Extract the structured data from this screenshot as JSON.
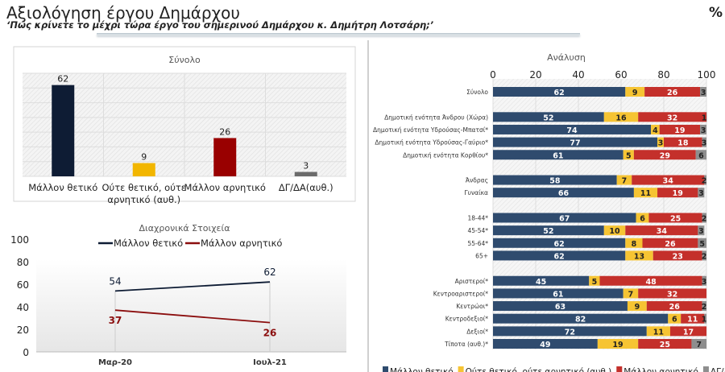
{
  "header": {
    "title": "Αξιολόγηση έργου Δημάρχου",
    "subtitle": "‘Πώς κρίνετε το μέχρι τώρα έργο του σημερινού Δημάρχου κ. Δημήτρη Λοτσάρη;’",
    "unit": "%"
  },
  "colors": {
    "positive": "#0e1c34",
    "neutral": "#f2b600",
    "negative": "#990000",
    "dk": "#6b6b6b",
    "a_positive": "#2f4b6e",
    "a_neutral": "#f6c433",
    "a_negative": "#c4302b",
    "a_dk": "#8e8e8e"
  },
  "chart_data": [
    {
      "type": "bar",
      "title": "Σύνολο",
      "categories": [
        "Μάλλον θετικό",
        "Ούτε θετικό, ούτε αρνητικό (αυθ.)",
        "Μάλλον αρνητικό",
        "ΔΓ/ΔΑ(αυθ.)"
      ],
      "category_lines": [
        [
          "Μάλλον θετικό"
        ],
        [
          "Ούτε θετικό, ούτε",
          "αρνητικό (αυθ.)"
        ],
        [
          "Μάλλον αρνητικό"
        ],
        [
          "ΔΓ/ΔΑ(αυθ.)"
        ]
      ],
      "values": [
        62,
        9,
        26,
        3
      ],
      "ylim": [
        0,
        70
      ]
    },
    {
      "type": "line",
      "title": "Διαχρονικά Στοιχεία",
      "x": [
        "Μαρ-20",
        "Ιουλ-21"
      ],
      "series": [
        {
          "name": "Μάλλον θετικό",
          "values": [
            54,
            62
          ]
        },
        {
          "name": "Μάλλον αρνητικό",
          "values": [
            37,
            26
          ]
        }
      ],
      "ylim": [
        0,
        100
      ],
      "yticks": [
        "0",
        "20",
        "40",
        "60",
        "80",
        "100"
      ],
      "legend": "top"
    },
    {
      "type": "bar",
      "orientation": "horizontal-stacked",
      "title": "Ανάλυση",
      "xlim": [
        0,
        100
      ],
      "xticks": [
        "0",
        "20",
        "40",
        "60",
        "80",
        "100"
      ],
      "series_names": [
        "Μάλλον θετικό",
        "Ούτε θετικό, ούτε αρνητικό (αυθ.)",
        "Μάλλον αρνητικό",
        "ΔΓ/ΔΑ(αυθ.)"
      ],
      "groups": [
        [
          {
            "label": "Σύνολο",
            "values": [
              62,
              9,
              26,
              3
            ]
          }
        ],
        [
          {
            "label": "Δημοτική ενότητα Άνδρου (Χώρα)",
            "values": [
              52,
              16,
              32,
              1
            ]
          },
          {
            "label": "Δημοτική ενότητα Υδρούσας-Μπατσί*",
            "values": [
              74,
              4,
              19,
              3
            ]
          },
          {
            "label": "Δημοτική ενότητα Υδρούσας-Γαύριο*",
            "values": [
              77,
              3,
              18,
              3
            ]
          },
          {
            "label": "Δημοτική ενότητα Κορθίου*",
            "values": [
              61,
              5,
              29,
              6
            ]
          }
        ],
        [
          {
            "label": "Άνδρας",
            "values": [
              58,
              7,
              34,
              2
            ]
          },
          {
            "label": "Γυναίκα",
            "values": [
              66,
              11,
              19,
              3
            ]
          }
        ],
        [
          {
            "label": "18-44*",
            "values": [
              67,
              6,
              25,
              2
            ]
          },
          {
            "label": "45-54*",
            "values": [
              52,
              10,
              34,
              3
            ]
          },
          {
            "label": "55-64*",
            "values": [
              62,
              8,
              26,
              5
            ]
          },
          {
            "label": "65+",
            "values": [
              62,
              13,
              23,
              2
            ]
          }
        ],
        [
          {
            "label": "Αριστεροί*",
            "values": [
              45,
              5,
              48,
              3
            ]
          },
          {
            "label": "Κεντροαριστεροί*",
            "values": [
              61,
              7,
              32,
              0
            ]
          },
          {
            "label": "Κεντρώοι*",
            "values": [
              63,
              9,
              26,
              2
            ]
          },
          {
            "label": "Κεντροδεξιοί*",
            "values": [
              82,
              6,
              11,
              1
            ]
          },
          {
            "label": "Δεξιοί*",
            "values": [
              72,
              11,
              17,
              0
            ]
          },
          {
            "label": "Τίποτα (αυθ.)*",
            "values": [
              49,
              19,
              25,
              7
            ]
          }
        ]
      ],
      "legend": "bottom"
    }
  ]
}
